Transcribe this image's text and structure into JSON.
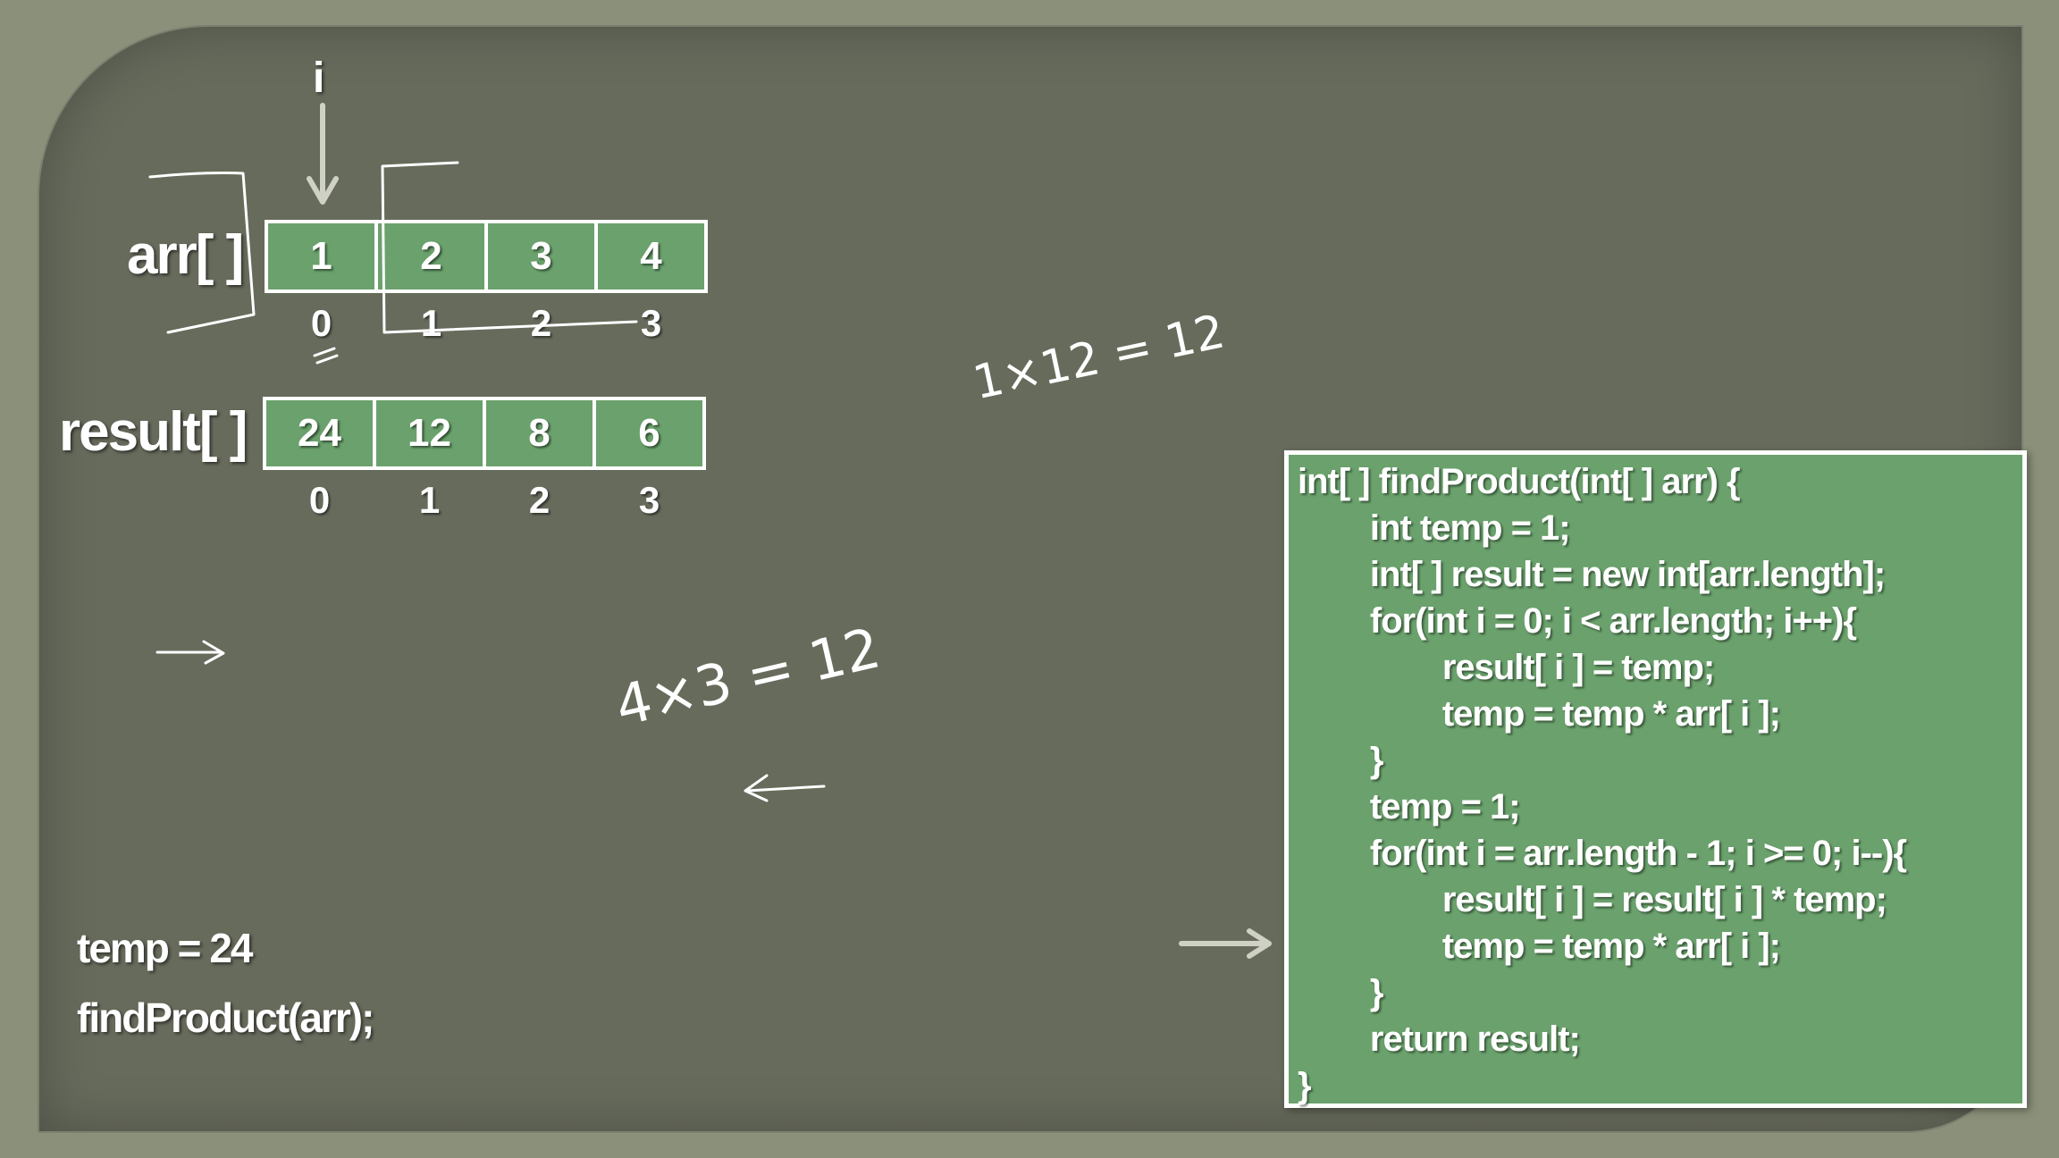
{
  "pointer": {
    "label": "i"
  },
  "arr": {
    "label": "arr[ ]",
    "values": [
      "1",
      "2",
      "3",
      "4"
    ],
    "indices": [
      "0",
      "1",
      "2",
      "3"
    ]
  },
  "result": {
    "label": "result[ ]",
    "values": [
      "24",
      "12",
      "8",
      "6"
    ],
    "indices": [
      "0",
      "1",
      "2",
      "3"
    ]
  },
  "annotations": {
    "eq1": "1×12 = 12",
    "eq2": "4×3 = 12"
  },
  "state": {
    "temp": "temp = 24",
    "call": "findProduct(arr);"
  },
  "code": [
    "int[ ] findProduct(int[ ] arr) {",
    "        int temp = 1;",
    "        int[ ] result = new int[arr.length];",
    "        for(int i = 0; i < arr.length; i++){",
    "                result[ i ] = temp;",
    "                temp = temp * arr[ i ];",
    "        }",
    "        temp = 1;",
    "        for(int i = arr.length - 1; i >= 0; i--){",
    "                result[ i ] = result[ i ] * temp;",
    "                temp = temp * arr[ i ];",
    "        }",
    "        return result;",
    "}"
  ],
  "colors": {
    "board": "#676b5c",
    "cell": "#6aa16c",
    "frame": "#8a9079"
  }
}
